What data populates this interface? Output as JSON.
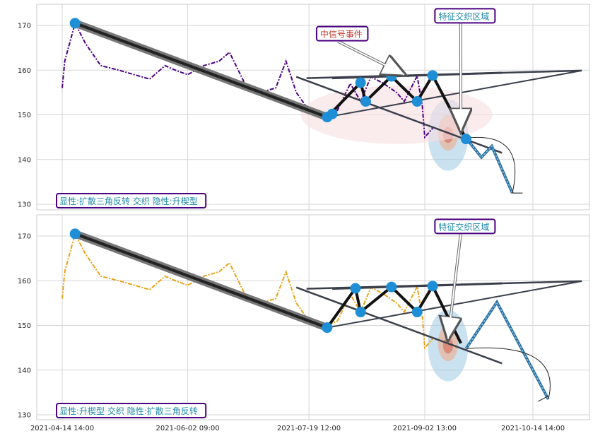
{
  "chart_data": [
    {
      "type": "line",
      "panel": "top",
      "title": "",
      "xlabel": "",
      "ylabel": "",
      "ylim": [
        129,
        175
      ],
      "y_ticks": [
        130,
        140,
        150,
        160,
        170
      ],
      "grid": true,
      "x_tick_labels": [
        "2021-04-14 14:00",
        "2021-06-02 09:00",
        "2021-07-19 12:00",
        "2021-09-02 13:00",
        "2021-10-14 14:00"
      ],
      "price_color": "#4b0082",
      "series": [
        {
          "x": [
            "2021-04-14 14:00",
            "2021-04-15 14:00",
            "2021-04-19 14:00",
            "2021-04-23 14:00",
            "2021-04-29 14:00",
            "2021-05-06 14:00",
            "2021-05-12 14:00",
            "2021-05-18 14:00",
            "2021-05-24 14:00",
            "2021-05-28 14:00",
            "2021-06-02 09:00",
            "2021-06-08 14:00",
            "2021-06-14 14:00",
            "2021-06-18 14:00",
            "2021-06-24 14:00",
            "2021-06-30 14:00",
            "2021-07-06 14:00",
            "2021-07-10 14:00",
            "2021-07-14 14:00",
            "2021-07-19 12:00",
            "2021-07-26 14:00",
            "2021-07-30 14:00",
            "2021-08-04 14:00",
            "2021-08-08 14:00",
            "2021-08-12 14:00",
            "2021-08-17 14:00",
            "2021-08-22 14:00",
            "2021-08-25 14:00",
            "2021-08-30 14:00",
            "2021-09-01 14:00",
            "2021-09-02 13:00",
            "2021-09-05 14:00"
          ],
          "values": [
            156,
            162,
            170.5,
            166,
            161,
            160,
            159,
            158,
            161,
            160,
            159,
            161,
            162,
            164,
            157,
            155,
            156,
            162,
            155,
            151,
            150,
            151,
            157,
            153,
            158.5,
            157,
            155,
            153,
            158.7,
            152,
            145,
            147
          ]
        }
      ],
      "patterns": {
        "trend_line": {
          "x": [
            "2021-04-19 14:00",
            "2021-07-26 14:00"
          ],
          "y": [
            170.5,
            149.5
          ]
        },
        "pivots": {
          "x": [
            "2021-04-19 14:00",
            "2021-07-26 14:00",
            "2021-07-28 14:00",
            "2021-08-08 14:00",
            "2021-08-10 14:00",
            "2021-08-20 14:00",
            "2021-08-30 14:00",
            "2021-09-05 14:00",
            "2021-09-18 14:00"
          ],
          "y": [
            170.5,
            149.5,
            150.2,
            157.2,
            153,
            158.6,
            153,
            158.8,
            144.6
          ]
        },
        "zigzag": {
          "x": [
            "2021-07-26 14:00",
            "2021-08-08 14:00",
            "2021-08-10 14:00",
            "2021-08-20 14:00",
            "2021-08-30 14:00",
            "2021-09-05 14:00",
            "2021-09-18 14:00"
          ],
          "y": [
            149.5,
            157.2,
            153,
            158.6,
            153,
            158.8,
            144.6
          ]
        },
        "upper_line": {
          "x": [
            "2021-07-28 14:00",
            "2021-10-02 14:00"
          ],
          "y": [
            158.2,
            159.4
          ]
        },
        "lower_line": {
          "x": [
            "2021-07-14 14:00",
            "2021-10-02 14:00"
          ],
          "y": [
            158.5,
            141.5
          ]
        },
        "wedge_top": {
          "x": [
            "2021-07-18 14:00",
            "2021-11-02 14:00"
          ],
          "y": [
            158.2,
            159.9
          ]
        },
        "wedge_bottom": {
          "x": [
            "2021-07-26 14:00",
            "2021-11-02 14:00"
          ],
          "y": [
            149.5,
            159.9
          ]
        },
        "projection": {
          "x": [
            "2021-09-18 14:00",
            "2021-09-24 14:00",
            "2021-09-28 14:00",
            "2021-10-06 14:00"
          ],
          "y": [
            144.8,
            140.5,
            143,
            132.5
          ]
        },
        "projection_bracket": {
          "x": [
            "2021-10-06 14:00",
            "2021-10-10 14:00"
          ],
          "y": [
            132.5,
            132.5
          ]
        },
        "ellipses": [
          {
            "x": "2021-09-11 14:00",
            "y": 145.5,
            "rx_days": 8,
            "ry": 8,
            "color": "#9ecae1"
          },
          {
            "x": "2021-09-11 14:00",
            "y": 146,
            "rx_days": 4,
            "ry": 4,
            "color": "#f4a582"
          },
          {
            "x": "2021-09-11 14:00",
            "y": 145.5,
            "rx_days": 2,
            "ry": 1.8,
            "color": "#d6604d"
          },
          {
            "x": "2021-08-22 14:00",
            "y": 150,
            "rx_days": 38,
            "ry": 6.5,
            "color": "#f7dde1"
          }
        ]
      },
      "annotations": [
        {
          "text": "中信号事件",
          "x": "2021-07-23 14:00",
          "y": 168,
          "color": "#c0392b",
          "arrow_to": {
            "x": "2021-08-25 14:00",
            "y": 159
          }
        },
        {
          "text": "特征交织区域",
          "x": "2021-09-07 14:00",
          "y": 172,
          "color": "#1f88a8",
          "arrow_to": {
            "x": "2021-09-16 14:00",
            "y": 146.5
          }
        }
      ],
      "legend_text": "显性:扩散三角反转 交织 隐性:升楔型",
      "legend_placement": "bottom-left"
    },
    {
      "type": "line",
      "panel": "bottom",
      "title": "",
      "xlabel": "",
      "ylabel": "",
      "ylim": [
        129,
        175
      ],
      "y_ticks": [
        130,
        140,
        150,
        160,
        170
      ],
      "grid": true,
      "x_tick_labels": [
        "2021-04-14 14:00",
        "2021-06-02 09:00",
        "2021-07-19 12:00",
        "2021-09-02 13:00",
        "2021-10-14 14:00"
      ],
      "price_color": "#e8a317",
      "series": [
        {
          "x": [
            "2021-04-14 14:00",
            "2021-04-15 14:00",
            "2021-04-19 14:00",
            "2021-04-23 14:00",
            "2021-04-29 14:00",
            "2021-05-06 14:00",
            "2021-05-12 14:00",
            "2021-05-18 14:00",
            "2021-05-24 14:00",
            "2021-05-28 14:00",
            "2021-06-02 09:00",
            "2021-06-08 14:00",
            "2021-06-14 14:00",
            "2021-06-18 14:00",
            "2021-06-24 14:00",
            "2021-06-30 14:00",
            "2021-07-06 14:00",
            "2021-07-10 14:00",
            "2021-07-14 14:00",
            "2021-07-19 12:00",
            "2021-07-26 14:00",
            "2021-07-30 14:00",
            "2021-08-04 14:00",
            "2021-08-08 14:00",
            "2021-08-12 14:00",
            "2021-08-17 14:00",
            "2021-08-22 14:00",
            "2021-08-25 14:00",
            "2021-08-30 14:00",
            "2021-09-01 14:00",
            "2021-09-02 13:00",
            "2021-09-05 14:00"
          ],
          "values": [
            156,
            162,
            170.5,
            166,
            161,
            160,
            159,
            158,
            161,
            160,
            159,
            161,
            162,
            164,
            157,
            155,
            156,
            162,
            155,
            151,
            150,
            151,
            157,
            153,
            158.5,
            157,
            155,
            153,
            158.7,
            152,
            145,
            147
          ]
        }
      ],
      "patterns": {
        "trend_line": {
          "x": [
            "2021-04-19 14:00",
            "2021-07-26 14:00"
          ],
          "y": [
            170.5,
            149.5
          ]
        },
        "pivots": {
          "x": [
            "2021-04-19 14:00",
            "2021-07-26 14:00",
            "2021-08-06 14:00",
            "2021-08-08 14:00",
            "2021-08-20 14:00",
            "2021-08-30 14:00",
            "2021-09-05 14:00"
          ],
          "y": [
            170.5,
            149.5,
            158.3,
            153,
            158.6,
            153,
            158.8
          ]
        },
        "zigzag": {
          "x": [
            "2021-07-26 14:00",
            "2021-08-06 14:00",
            "2021-08-08 14:00",
            "2021-08-20 14:00",
            "2021-08-30 14:00",
            "2021-09-05 14:00",
            "2021-09-16 14:00"
          ],
          "y": [
            149.5,
            158.3,
            153,
            158.6,
            153,
            158.8,
            146
          ]
        },
        "upper_line": {
          "x": [
            "2021-07-28 14:00",
            "2021-10-02 14:00"
          ],
          "y": [
            158.2,
            159.4
          ]
        },
        "lower_line": {
          "x": [
            "2021-07-14 14:00",
            "2021-10-02 14:00"
          ],
          "y": [
            158.5,
            141.5
          ]
        },
        "wedge_top": {
          "x": [
            "2021-07-18 14:00",
            "2021-11-02 14:00"
          ],
          "y": [
            158.2,
            159.9
          ]
        },
        "wedge_bottom": {
          "x": [
            "2021-07-26 14:00",
            "2021-11-02 14:00"
          ],
          "y": [
            149.5,
            159.9
          ]
        },
        "projection": {
          "x": [
            "2021-09-18 14:00",
            "2021-09-30 14:00",
            "2021-10-20 14:00"
          ],
          "y": [
            144.8,
            155.2,
            133.5
          ]
        },
        "projection_bracket": {
          "x": [
            "2021-10-16 14:00",
            "2021-10-20 14:00"
          ],
          "y": [
            133,
            134.2
          ]
        },
        "ellipses": [
          {
            "x": "2021-09-11 14:00",
            "y": 145.5,
            "rx_days": 8,
            "ry": 8,
            "color": "#9ecae1"
          },
          {
            "x": "2021-09-11 14:00",
            "y": 146,
            "rx_days": 4,
            "ry": 4,
            "color": "#f4a582"
          },
          {
            "x": "2021-09-11 14:00",
            "y": 145.5,
            "rx_days": 2,
            "ry": 1.8,
            "color": "#d6604d"
          }
        ]
      },
      "annotations": [
        {
          "text": "特征交织区域",
          "x": "2021-09-07 14:00",
          "y": 172,
          "color": "#1f88a8",
          "arrow_to": {
            "x": "2021-09-11 14:00",
            "y": 147
          }
        }
      ],
      "legend_text": "显性:升楔型 交织 隐性:扩散三角反转",
      "legend_placement": "bottom-left"
    }
  ]
}
